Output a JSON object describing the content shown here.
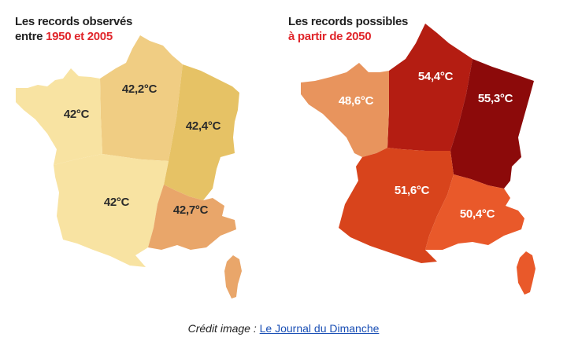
{
  "maps": [
    {
      "title_line1": "Les records observés",
      "title_line2_prefix": "entre ",
      "title_line2_accent": "1950 et 2005",
      "regions": [
        {
          "id": "north-center",
          "label": "42,2°C",
          "color": "#f0cd83"
        },
        {
          "id": "west",
          "label": "42°C",
          "color": "#f8e3a2"
        },
        {
          "id": "northeast",
          "label": "42,4°C",
          "color": "#e6c265"
        },
        {
          "id": "southwest",
          "label": "42°C",
          "color": "#f8e3a2"
        },
        {
          "id": "southeast",
          "label": "42,7°C",
          "color": "#e9a66a"
        },
        {
          "id": "corsica",
          "label": "",
          "color": "#e9a66a"
        }
      ]
    },
    {
      "title_line1": "Les records possibles",
      "title_line2_prefix": "",
      "title_line2_accent": "à partir de 2050",
      "regions": [
        {
          "id": "north-center",
          "label": "54,4°C",
          "color": "#b41d12"
        },
        {
          "id": "west",
          "label": "48,6°C",
          "color": "#e8945d"
        },
        {
          "id": "northeast",
          "label": "55,3°C",
          "color": "#8c0a0a"
        },
        {
          "id": "southwest",
          "label": "51,6°C",
          "color": "#d8441c"
        },
        {
          "id": "southeast",
          "label": "50,4°C",
          "color": "#e9592a"
        },
        {
          "id": "corsica",
          "label": "",
          "color": "#e9592a"
        }
      ]
    }
  ],
  "credit": {
    "prefix": "Crédit image : ",
    "link_text": "Le Journal du Dimanche"
  }
}
